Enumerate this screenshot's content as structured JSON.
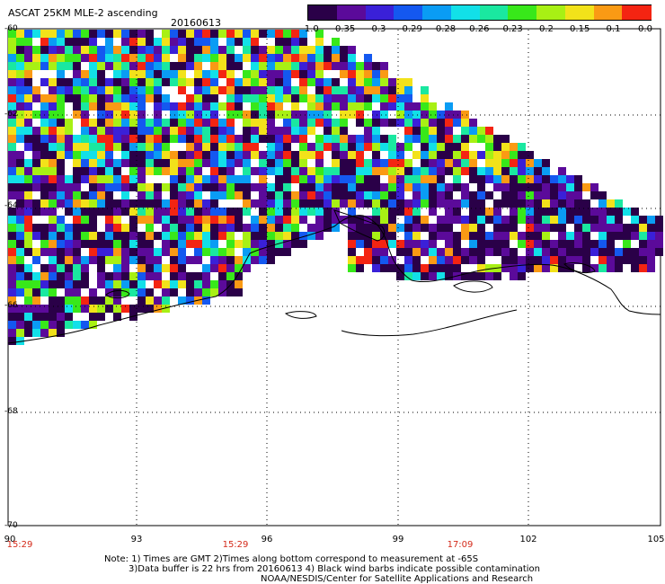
{
  "header": {
    "title": "ASCAT 25KM MLE-2 ascending",
    "date": "20160613"
  },
  "colorbar": {
    "labels": [
      "-1.0",
      "-0.35",
      "-0.3",
      "-0.29",
      "-0.28",
      "-0.26",
      "-0.23",
      "-0.2",
      "-0.15",
      "-0.1",
      "0.0"
    ],
    "colors": [
      "#2a0048",
      "#5b0a9a",
      "#3a20d8",
      "#1458f0",
      "#0a9cf4",
      "#12e0e8",
      "#1ae8a0",
      "#38e81a",
      "#a8f014",
      "#f2e21a",
      "#fa9a14",
      "#f42412"
    ]
  },
  "axes": {
    "lat_labels": [
      "-60",
      "-62",
      "-64",
      "-66",
      "-68",
      "-70"
    ],
    "lon_labels": [
      "90",
      "93",
      "96",
      "99",
      "102",
      "105"
    ],
    "time_labels": [
      "15:29",
      "15:29",
      "17:09"
    ]
  },
  "notes": {
    "line1": "Note: 1) Times are GMT 2)Times along bottom correspond to measurement at -65S",
    "line2": "3)Data buffer is 22 hrs from 20160613 4) Black wind barbs indicate possible contamination",
    "line3": "NOAA/NESDIS/Center for Satellite Applications and Research"
  }
}
